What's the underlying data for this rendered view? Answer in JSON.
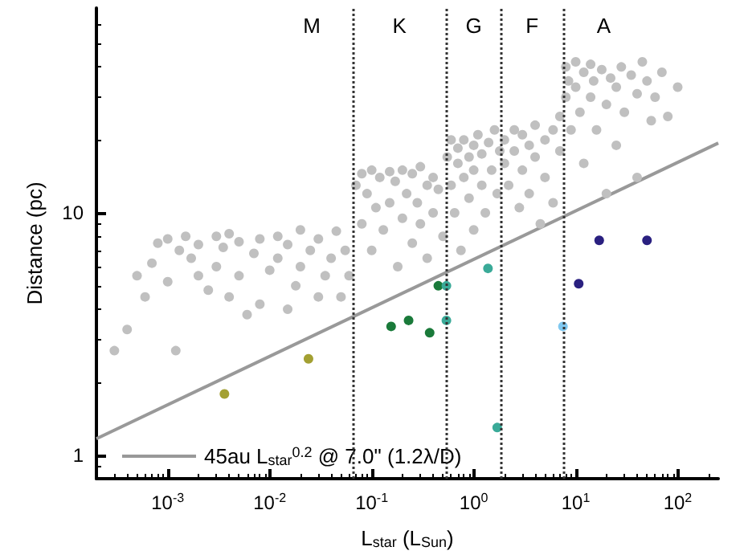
{
  "chart_data": {
    "type": "scatter",
    "xlabel": "L$_{star}$ (L$_{Sun}$)",
    "ylabel": "Distance (pc)",
    "log": "xy",
    "grid": false,
    "legend": "bottom left",
    "xlim": [
      0.0002,
      250
    ],
    "ylim": [
      0.8,
      70
    ],
    "xticks": [
      {
        "value": 0.001,
        "label": "10$^{-3}$"
      },
      {
        "value": 0.01,
        "label": "10$^{-2}$"
      },
      {
        "value": 0.1,
        "label": "10$^{-1}$"
      },
      {
        "value": 1,
        "label": "10$^{0}$"
      },
      {
        "value": 10,
        "label": "10$^{1}$"
      },
      {
        "value": 100,
        "label": "10$^{2}$"
      }
    ],
    "yticks": [
      1,
      10
    ],
    "ref_lines": [
      {
        "axis": "x",
        "value": 0.065,
        "color": "#333333",
        "line_style": "dotted"
      },
      {
        "axis": "x",
        "value": 0.54,
        "color": "#333333",
        "line_style": "dotted"
      },
      {
        "axis": "x",
        "value": 1.85,
        "color": "#333333",
        "line_style": "dotted"
      },
      {
        "axis": "x",
        "value": 7.5,
        "color": "#333333",
        "line_style": "dotted"
      }
    ],
    "annotations": [
      "M",
      "K",
      "G",
      "F",
      "A"
    ],
    "series": [
      {
        "type": "scatter",
        "marker": "circle",
        "color": "#c0c0c0",
        "x": [
          0.0003,
          0.0004,
          0.0005,
          0.0006,
          0.0007,
          0.0008,
          0.001,
          0.001,
          0.0012,
          0.0013,
          0.0015,
          0.0017,
          0.002,
          0.002,
          0.0025,
          0.003,
          0.003,
          0.0035,
          0.004,
          0.004,
          0.005,
          0.005,
          0.006,
          0.007,
          0.008,
          0.008,
          0.01,
          0.012,
          0.012,
          0.015,
          0.015,
          0.018,
          0.02,
          0.02,
          0.025,
          0.03,
          0.03,
          0.035,
          0.04,
          0.045,
          0.05,
          0.055,
          0.06,
          0.07,
          0.08,
          0.08,
          0.09,
          0.1,
          0.1,
          0.11,
          0.12,
          0.13,
          0.15,
          0.15,
          0.17,
          0.18,
          0.2,
          0.2,
          0.22,
          0.25,
          0.25,
          0.28,
          0.3,
          0.3,
          0.35,
          0.35,
          0.4,
          0.4,
          0.45,
          0.5,
          0.55,
          0.6,
          0.6,
          0.65,
          0.7,
          0.7,
          0.75,
          0.8,
          0.8,
          0.9,
          0.9,
          1.0,
          1.0,
          1.0,
          1.1,
          1.2,
          1.2,
          1.3,
          1.4,
          1.5,
          1.6,
          1.7,
          1.8,
          2,
          2,
          2.2,
          2.5,
          2.5,
          2.8,
          3,
          3,
          3.5,
          3.5,
          4,
          4,
          4.5,
          5,
          5,
          6,
          6,
          7,
          7,
          8,
          8,
          8.5,
          9,
          10,
          10,
          11,
          12,
          12,
          14,
          14,
          15,
          16,
          18,
          20,
          20,
          22,
          25,
          25,
          28,
          30,
          35,
          40,
          40,
          45,
          50,
          55,
          60,
          70,
          80,
          100
        ],
        "values": [
          2.7,
          3.3,
          5.5,
          4.5,
          6.2,
          7.5,
          7.8,
          5.2,
          2.7,
          7.0,
          8.0,
          6.5,
          5.5,
          7.4,
          4.8,
          8.0,
          6.0,
          7.2,
          4.5,
          8.2,
          7.6,
          5.5,
          3.8,
          6.8,
          7.8,
          4.2,
          5.8,
          8.0,
          6.5,
          7.4,
          4.0,
          5.0,
          8.5,
          6.0,
          7.0,
          4.5,
          7.8,
          5.5,
          6.5,
          8.4,
          4.5,
          7.0,
          5.5,
          13,
          14.5,
          9,
          12,
          15,
          7,
          10.5,
          14,
          8.5,
          14.8,
          11,
          13.5,
          6,
          15,
          9.5,
          12,
          14.5,
          7.5,
          11,
          15.5,
          9,
          13,
          6.5,
          14,
          10,
          12.5,
          8,
          17,
          13,
          20,
          10,
          16,
          18.5,
          7,
          14,
          20,
          17,
          11.5,
          19,
          15,
          8.5,
          21,
          13,
          17.5,
          10,
          19.5,
          15,
          22,
          12,
          18,
          20,
          16,
          13,
          22,
          18,
          10.5,
          21,
          15,
          19,
          12,
          23,
          17,
          9,
          20,
          14,
          22,
          11,
          18,
          25,
          40,
          30,
          35,
          22,
          42,
          33,
          26,
          38,
          16,
          41,
          30,
          35,
          22,
          39,
          28,
          12,
          36,
          33,
          19,
          40,
          26,
          37,
          31,
          14,
          42,
          35,
          24,
          30,
          38,
          25,
          33
        ]
      },
      {
        "type": "scatter",
        "marker": "circle",
        "x": [
          0.0036,
          0.024,
          0.155,
          0.23,
          0.37,
          0.45,
          0.54,
          0.54,
          1.38,
          1.7,
          7.5,
          10.7,
          17,
          50
        ],
        "values": [
          1.79,
          2.5,
          3.4,
          3.6,
          3.2,
          5.0,
          5.0,
          3.6,
          5.9,
          1.3,
          3.4,
          5.1,
          7.7,
          7.7
        ],
        "colors": [
          "#a3a032",
          "#a3a032",
          "#1a7a3a",
          "#1a7a3a",
          "#1a7a3a",
          "#1a7a3a",
          "#3aaa98",
          "#3aaa98",
          "#3aaa98",
          "#3aaa98",
          "#80c8f0",
          "#2a2080",
          "#2a2080",
          "#2a2080"
        ]
      },
      {
        "type": "line",
        "name": "45au L$_{star}$$^{0.2}$ @ 7.0\" (1.2λ/D)",
        "color": "#999999",
        "x": [
          0.0002,
          250
        ],
        "values": [
          1.17,
          19.4
        ]
      }
    ]
  }
}
